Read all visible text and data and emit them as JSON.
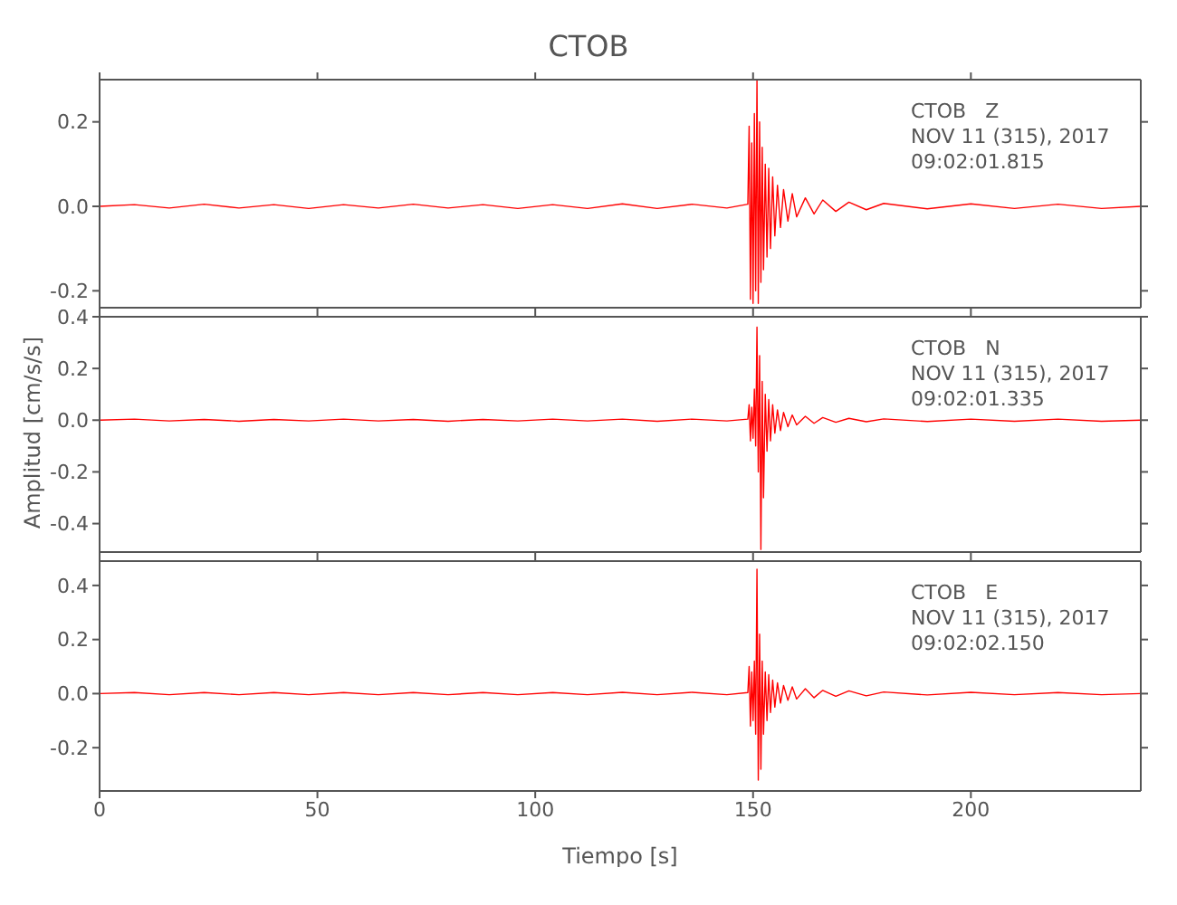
{
  "chart_data": [
    {
      "type": "line",
      "title": "CTOB",
      "annotations": [
        "CTOB   Z",
        "NOV 11 (315), 2017",
        "09:02:01.815"
      ],
      "tick_labels": "y",
      "grid": false,
      "xlim": [
        0,
        239
      ],
      "xticks": [
        {
          "value": 0,
          "label": null
        },
        {
          "value": 50,
          "label": null
        },
        {
          "value": 100,
          "label": null
        },
        {
          "value": 150,
          "label": null
        },
        {
          "value": 200,
          "label": null
        }
      ],
      "ylim": [
        -0.24,
        0.3
      ],
      "yticks": [
        {
          "value": -0.2,
          "label": "-0.2"
        },
        {
          "value": 0,
          "label": "0.0"
        },
        {
          "value": 0.2,
          "label": "0.2"
        }
      ],
      "x": [
        0,
        8,
        16,
        24,
        32,
        40,
        48,
        56,
        64,
        72,
        80,
        88,
        96,
        104,
        112,
        120,
        128,
        136,
        144,
        148.8,
        149.1,
        149.4,
        149.7,
        150.0,
        150.3,
        150.6,
        150.9,
        151.2,
        151.5,
        151.8,
        152.1,
        152.4,
        152.8,
        153.2,
        153.6,
        154.0,
        154.5,
        155.0,
        155.6,
        156.3,
        157.0,
        158,
        159,
        160,
        162,
        164,
        166,
        169,
        172,
        176,
        180,
        190,
        200,
        210,
        220,
        230,
        239
      ],
      "series": [
        {
          "color": "#ff0000",
          "values": [
            0,
            0.004,
            -0.004,
            0.005,
            -0.004,
            0.004,
            -0.005,
            0.004,
            -0.004,
            0.005,
            -0.004,
            0.004,
            -0.005,
            0.004,
            -0.005,
            0.006,
            -0.005,
            0.005,
            -0.004,
            0.005,
            0.19,
            -0.22,
            0.15,
            -0.23,
            0.22,
            -0.2,
            0.3,
            -0.23,
            0.2,
            -0.18,
            0.14,
            -0.15,
            0.1,
            -0.12,
            0.09,
            -0.1,
            0.07,
            -0.07,
            0.05,
            -0.05,
            0.04,
            -0.035,
            0.03,
            -0.025,
            0.02,
            -0.018,
            0.015,
            -0.012,
            0.01,
            -0.008,
            0.007,
            -0.006,
            0.006,
            -0.005,
            0.005,
            -0.005,
            0
          ]
        }
      ]
    },
    {
      "type": "line",
      "ylabel": "Amplitud [cm/s/s]",
      "annotations": [
        "CTOB   N",
        "NOV 11 (315), 2017",
        "09:02:01.335"
      ],
      "tick_labels": "y",
      "grid": false,
      "xlim": [
        0,
        239
      ],
      "xticks": [
        {
          "value": 0,
          "label": null
        },
        {
          "value": 50,
          "label": null
        },
        {
          "value": 100,
          "label": null
        },
        {
          "value": 150,
          "label": null
        },
        {
          "value": 200,
          "label": null
        }
      ],
      "ylim": [
        -0.51,
        0.4
      ],
      "yticks": [
        {
          "value": -0.4,
          "label": "-0.4"
        },
        {
          "value": -0.2,
          "label": "-0.2"
        },
        {
          "value": 0,
          "label": "0.0"
        },
        {
          "value": 0.2,
          "label": "0.2"
        },
        {
          "value": 0.4,
          "label": "0.4"
        }
      ],
      "x": [
        0,
        8,
        16,
        24,
        32,
        40,
        48,
        56,
        64,
        72,
        80,
        88,
        96,
        104,
        112,
        120,
        128,
        136,
        144,
        148.8,
        149.1,
        149.4,
        149.7,
        150.0,
        150.3,
        150.6,
        150.9,
        151.2,
        151.5,
        151.8,
        152.1,
        152.4,
        152.8,
        153.2,
        153.6,
        154.0,
        154.5,
        155.0,
        155.6,
        156.3,
        157.0,
        158,
        159,
        160,
        162,
        164,
        166,
        169,
        172,
        176,
        180,
        190,
        200,
        210,
        220,
        230,
        239
      ],
      "series": [
        {
          "color": "#ff0000",
          "values": [
            0,
            0.004,
            -0.003,
            0.003,
            -0.004,
            0.003,
            -0.003,
            0.004,
            -0.003,
            0.003,
            -0.004,
            0.003,
            -0.003,
            0.004,
            -0.003,
            0.004,
            -0.004,
            0.004,
            -0.003,
            0.004,
            0.06,
            -0.08,
            0.05,
            -0.07,
            0.12,
            -0.1,
            0.36,
            -0.2,
            0.25,
            -0.5,
            0.15,
            -0.3,
            0.1,
            -0.12,
            0.08,
            -0.08,
            0.06,
            -0.05,
            0.04,
            -0.04,
            0.03,
            -0.025,
            0.02,
            -0.018,
            0.015,
            -0.012,
            0.01,
            -0.008,
            0.007,
            -0.006,
            0.005,
            -0.005,
            0.004,
            -0.004,
            0.004,
            -0.004,
            0
          ]
        }
      ]
    },
    {
      "type": "line",
      "xlabel": "Tiempo [s]",
      "annotations": [
        "CTOB   E",
        "NOV 11 (315), 2017",
        "09:02:02.150"
      ],
      "grid": false,
      "xlim": [
        0,
        239
      ],
      "xticks": [
        0,
        50,
        100,
        150,
        200
      ],
      "ylim": [
        -0.36,
        0.49
      ],
      "yticks": [
        {
          "value": -0.2,
          "label": "-0.2"
        },
        {
          "value": 0,
          "label": "0.0"
        },
        {
          "value": 0.2,
          "label": "0.2"
        },
        {
          "value": 0.4,
          "label": "0.4"
        }
      ],
      "x": [
        0,
        8,
        16,
        24,
        32,
        40,
        48,
        56,
        64,
        72,
        80,
        88,
        96,
        104,
        112,
        120,
        128,
        136,
        144,
        148.8,
        149.1,
        149.4,
        149.7,
        150.0,
        150.3,
        150.6,
        150.9,
        151.2,
        151.5,
        151.8,
        152.1,
        152.4,
        152.8,
        153.2,
        153.6,
        154.0,
        154.5,
        155.0,
        155.6,
        156.3,
        157.0,
        158,
        159,
        160,
        162,
        164,
        166,
        169,
        172,
        176,
        180,
        190,
        200,
        210,
        220,
        230,
        239
      ],
      "series": [
        {
          "color": "#ff0000",
          "values": [
            0,
            0.004,
            -0.004,
            0.004,
            -0.004,
            0.004,
            -0.004,
            0.004,
            -0.004,
            0.004,
            -0.004,
            0.004,
            -0.004,
            0.004,
            -0.004,
            0.005,
            -0.004,
            0.005,
            -0.004,
            0.004,
            0.1,
            -0.12,
            0.08,
            -0.1,
            0.12,
            -0.15,
            0.46,
            -0.32,
            0.22,
            -0.28,
            0.12,
            -0.15,
            0.08,
            -0.1,
            0.07,
            -0.07,
            0.05,
            -0.05,
            0.04,
            -0.035,
            0.03,
            -0.025,
            0.025,
            -0.02,
            0.018,
            -0.015,
            0.012,
            -0.01,
            0.01,
            -0.008,
            0.006,
            -0.005,
            0.005,
            -0.004,
            0.004,
            -0.004,
            0
          ]
        }
      ]
    }
  ]
}
